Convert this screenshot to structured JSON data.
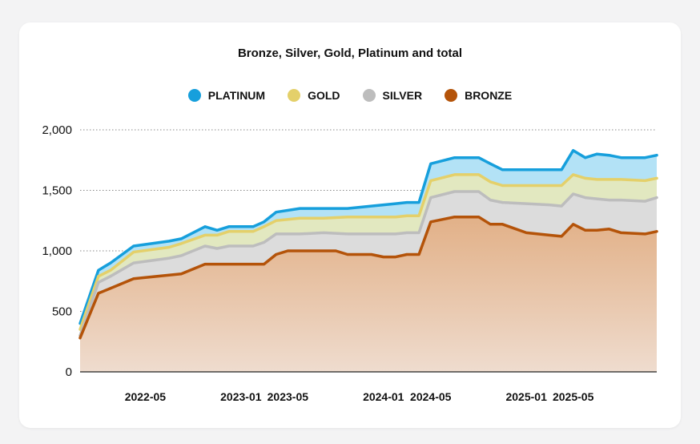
{
  "chart_data": {
    "type": "area",
    "title": "Bronze, Silver, Gold, Platinum and total",
    "xlabel": "",
    "ylabel": "",
    "ylim": [
      0,
      2000
    ],
    "y_ticks": [
      "0",
      "500",
      "1,000",
      "1,500",
      "2,000"
    ],
    "y_tick_values": [
      0,
      500,
      1000,
      1500,
      2000
    ],
    "x_tick_labels": [
      "2022-05",
      "2023-01",
      "2023-05",
      "2024-01",
      "2024-05",
      "2025-01",
      "2025-05"
    ],
    "x_tick_values": [
      "2022-05",
      "2023-01",
      "2023-05",
      "2024-01",
      "2024-05",
      "2025-01",
      "2025-05"
    ],
    "x_range": [
      "2021-11-15",
      "2025-12-01"
    ],
    "grid": "horizontal dotted",
    "legend_position": "top-center",
    "stacked": true,
    "colors": {
      "platinum": "#169fdc",
      "gold": "#e4d06a",
      "silver": "#bdbdbd",
      "bronze": "#b45309"
    },
    "series": [
      {
        "name": "PLATINUM",
        "points": [
          [
            "2021-11-15",
            400
          ],
          [
            "2022-01-01",
            840
          ],
          [
            "2022-02-01",
            900
          ],
          [
            "2022-04-01",
            1040
          ],
          [
            "2022-07-01",
            1080
          ],
          [
            "2022-08-01",
            1100
          ],
          [
            "2022-10-01",
            1200
          ],
          [
            "2022-11-01",
            1170
          ],
          [
            "2022-12-01",
            1200
          ],
          [
            "2023-02-01",
            1200
          ],
          [
            "2023-03-01",
            1240
          ],
          [
            "2023-04-01",
            1320
          ],
          [
            "2023-06-01",
            1350
          ],
          [
            "2023-08-01",
            1350
          ],
          [
            "2023-10-01",
            1350
          ],
          [
            "2023-12-01",
            1370
          ],
          [
            "2024-02-01",
            1390
          ],
          [
            "2024-03-01",
            1400
          ],
          [
            "2024-04-01",
            1400
          ],
          [
            "2024-05-01",
            1720
          ],
          [
            "2024-07-01",
            1770
          ],
          [
            "2024-09-01",
            1770
          ],
          [
            "2024-10-01",
            1720
          ],
          [
            "2024-11-01",
            1670
          ],
          [
            "2025-01-01",
            1670
          ],
          [
            "2025-03-01",
            1670
          ],
          [
            "2025-04-01",
            1670
          ],
          [
            "2025-05-01",
            1830
          ],
          [
            "2025-06-01",
            1770
          ],
          [
            "2025-07-01",
            1800
          ],
          [
            "2025-08-01",
            1790
          ],
          [
            "2025-09-01",
            1770
          ],
          [
            "2025-11-01",
            1770
          ],
          [
            "2025-12-01",
            1790
          ]
        ]
      },
      {
        "name": "GOLD",
        "points": [
          [
            "2021-11-15",
            350
          ],
          [
            "2022-01-01",
            790
          ],
          [
            "2022-02-01",
            840
          ],
          [
            "2022-04-01",
            990
          ],
          [
            "2022-07-01",
            1030
          ],
          [
            "2022-08-01",
            1060
          ],
          [
            "2022-10-01",
            1130
          ],
          [
            "2022-11-01",
            1130
          ],
          [
            "2022-12-01",
            1160
          ],
          [
            "2023-02-01",
            1160
          ],
          [
            "2023-03-01",
            1200
          ],
          [
            "2023-04-01",
            1250
          ],
          [
            "2023-06-01",
            1270
          ],
          [
            "2023-08-01",
            1270
          ],
          [
            "2023-10-01",
            1280
          ],
          [
            "2023-12-01",
            1280
          ],
          [
            "2024-02-01",
            1280
          ],
          [
            "2024-03-01",
            1290
          ],
          [
            "2024-04-01",
            1290
          ],
          [
            "2024-05-01",
            1580
          ],
          [
            "2024-07-01",
            1630
          ],
          [
            "2024-09-01",
            1630
          ],
          [
            "2024-10-01",
            1570
          ],
          [
            "2024-11-01",
            1540
          ],
          [
            "2025-01-01",
            1540
          ],
          [
            "2025-03-01",
            1540
          ],
          [
            "2025-04-01",
            1540
          ],
          [
            "2025-05-01",
            1630
          ],
          [
            "2025-06-01",
            1600
          ],
          [
            "2025-07-01",
            1590
          ],
          [
            "2025-08-01",
            1590
          ],
          [
            "2025-09-01",
            1590
          ],
          [
            "2025-11-01",
            1580
          ],
          [
            "2025-12-01",
            1600
          ]
        ]
      },
      {
        "name": "SILVER",
        "points": [
          [
            "2021-11-15",
            300
          ],
          [
            "2022-01-01",
            740
          ],
          [
            "2022-02-01",
            790
          ],
          [
            "2022-04-01",
            900
          ],
          [
            "2022-07-01",
            940
          ],
          [
            "2022-08-01",
            960
          ],
          [
            "2022-10-01",
            1040
          ],
          [
            "2022-11-01",
            1020
          ],
          [
            "2022-12-01",
            1040
          ],
          [
            "2023-02-01",
            1040
          ],
          [
            "2023-03-01",
            1070
          ],
          [
            "2023-04-01",
            1140
          ],
          [
            "2023-06-01",
            1140
          ],
          [
            "2023-08-01",
            1150
          ],
          [
            "2023-10-01",
            1140
          ],
          [
            "2023-12-01",
            1140
          ],
          [
            "2024-02-01",
            1140
          ],
          [
            "2024-03-01",
            1150
          ],
          [
            "2024-04-01",
            1150
          ],
          [
            "2024-05-01",
            1440
          ],
          [
            "2024-07-01",
            1490
          ],
          [
            "2024-09-01",
            1490
          ],
          [
            "2024-10-01",
            1420
          ],
          [
            "2024-11-01",
            1400
          ],
          [
            "2025-01-01",
            1390
          ],
          [
            "2025-03-01",
            1380
          ],
          [
            "2025-04-01",
            1370
          ],
          [
            "2025-05-01",
            1470
          ],
          [
            "2025-06-01",
            1440
          ],
          [
            "2025-07-01",
            1430
          ],
          [
            "2025-08-01",
            1420
          ],
          [
            "2025-09-01",
            1420
          ],
          [
            "2025-11-01",
            1410
          ],
          [
            "2025-12-01",
            1440
          ]
        ]
      },
      {
        "name": "BRONZE",
        "points": [
          [
            "2021-11-15",
            280
          ],
          [
            "2022-01-01",
            650
          ],
          [
            "2022-02-01",
            690
          ],
          [
            "2022-04-01",
            770
          ],
          [
            "2022-07-01",
            800
          ],
          [
            "2022-08-01",
            810
          ],
          [
            "2022-10-01",
            890
          ],
          [
            "2022-11-01",
            890
          ],
          [
            "2022-12-01",
            890
          ],
          [
            "2023-02-01",
            890
          ],
          [
            "2023-03-01",
            890
          ],
          [
            "2023-04-01",
            970
          ],
          [
            "2023-05-01",
            1000
          ],
          [
            "2023-06-01",
            1000
          ],
          [
            "2023-08-01",
            1000
          ],
          [
            "2023-09-01",
            1000
          ],
          [
            "2023-10-01",
            970
          ],
          [
            "2023-11-01",
            970
          ],
          [
            "2023-12-01",
            970
          ],
          [
            "2024-01-01",
            950
          ],
          [
            "2024-02-01",
            950
          ],
          [
            "2024-03-01",
            970
          ],
          [
            "2024-04-01",
            970
          ],
          [
            "2024-05-01",
            1240
          ],
          [
            "2024-07-01",
            1280
          ],
          [
            "2024-09-01",
            1280
          ],
          [
            "2024-10-01",
            1220
          ],
          [
            "2024-11-01",
            1220
          ],
          [
            "2025-01-01",
            1150
          ],
          [
            "2025-03-01",
            1130
          ],
          [
            "2025-04-01",
            1120
          ],
          [
            "2025-05-01",
            1220
          ],
          [
            "2025-06-01",
            1170
          ],
          [
            "2025-07-01",
            1170
          ],
          [
            "2025-08-01",
            1180
          ],
          [
            "2025-09-01",
            1150
          ],
          [
            "2025-11-01",
            1140
          ],
          [
            "2025-12-01",
            1160
          ]
        ]
      }
    ]
  }
}
